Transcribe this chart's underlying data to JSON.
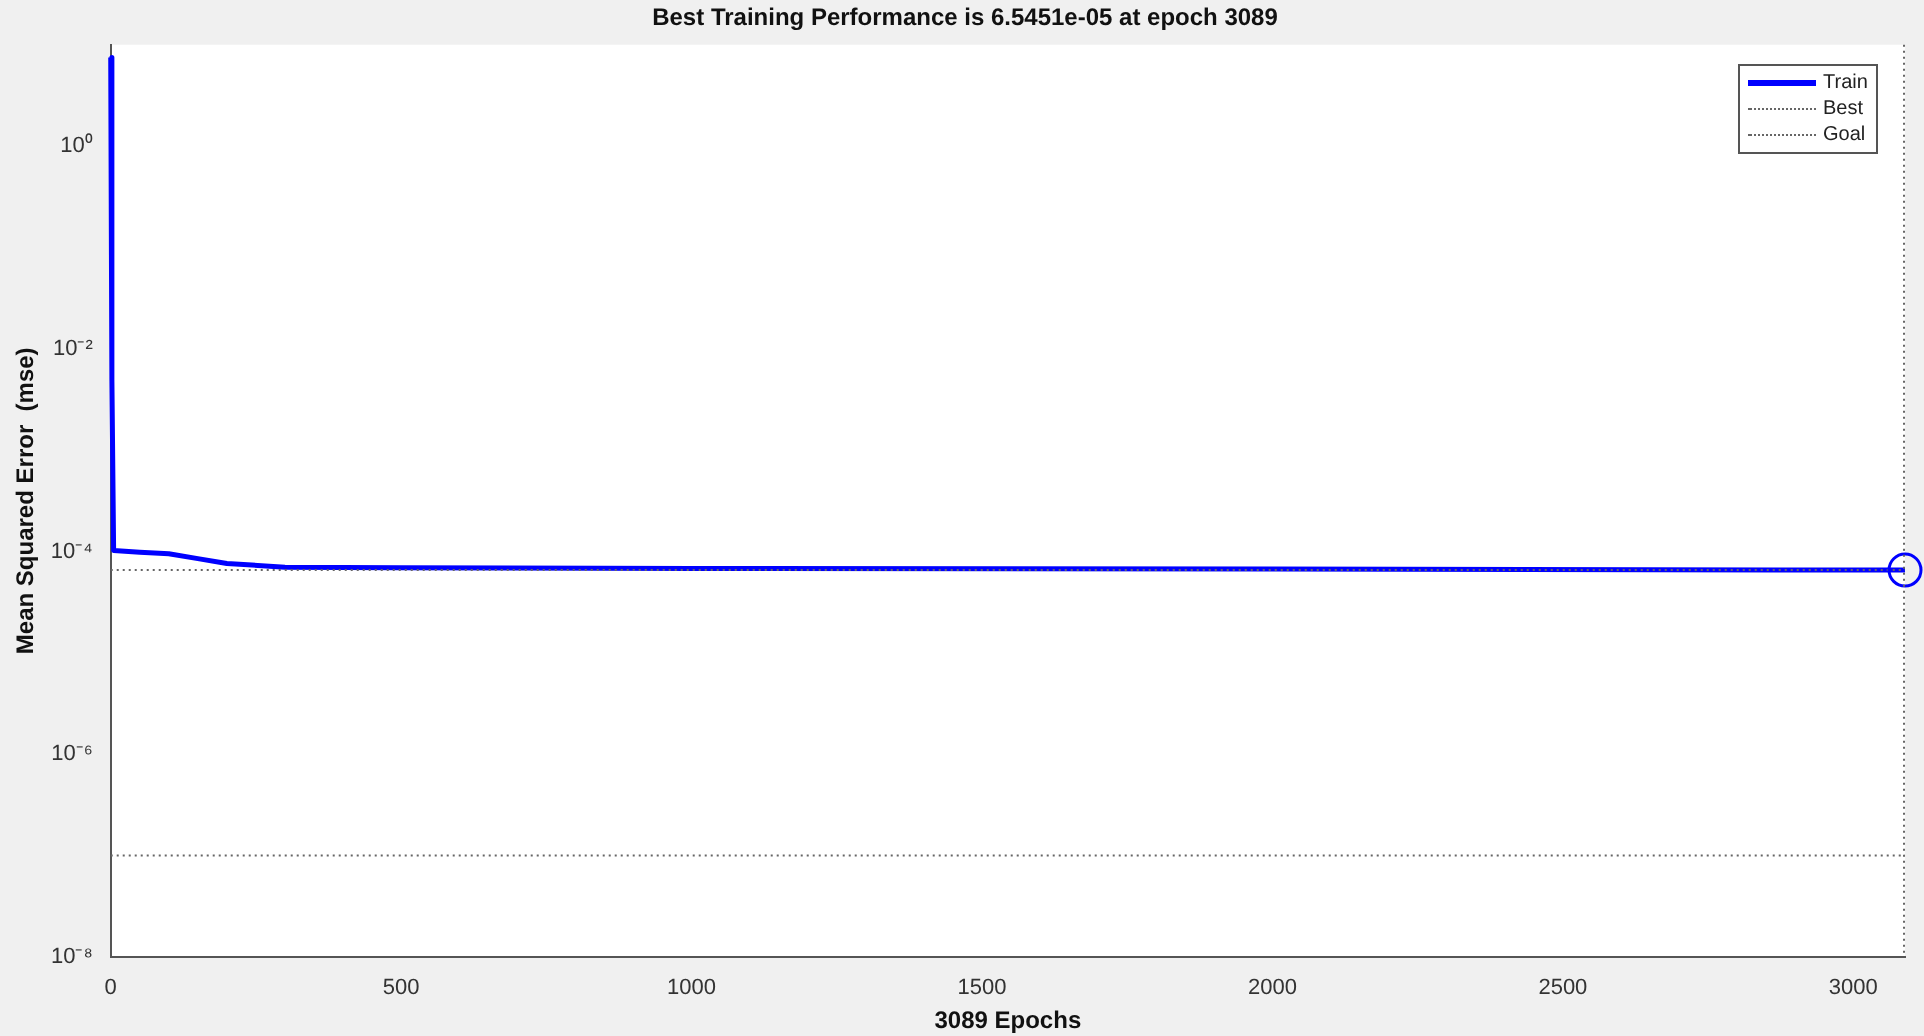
{
  "chart_data": {
    "type": "line",
    "title": "Best Training Performance is 6.5451e-05 at epoch 3089",
    "xlabel": "3089 Epochs",
    "ylabel": "Mean Squared Error  (mse)",
    "log": "y",
    "grid": false,
    "legend": "top right",
    "xlim": [
      0,
      3089
    ],
    "xticks": [
      0,
      500,
      1000,
      1500,
      2000,
      2500,
      3000
    ],
    "ylim": [
      1e-08,
      10
    ],
    "yticks": [
      {
        "value": 1e-08,
        "label": "10⁻⁸"
      },
      {
        "value": 1e-06,
        "label": "10⁻⁶"
      },
      {
        "value": 0.0001,
        "label": "10⁻⁴"
      },
      {
        "value": 0.01,
        "label": "10⁻²"
      },
      {
        "value": 1,
        "label": "10⁰"
      }
    ],
    "ref_lines": [
      {
        "axis": "x",
        "value": 3089,
        "color": "#666666",
        "line_style": "dotted"
      }
    ],
    "series": [
      {
        "name": "Train",
        "color": "#0000ff",
        "line_style": "solid",
        "marker": "none",
        "x": [
          0,
          2,
          5,
          50,
          100,
          150,
          200,
          300,
          500,
          1000,
          2000,
          3089
        ],
        "values": [
          7.5,
          0.005,
          0.000102,
          9.8e-05,
          9.5e-05,
          8.5e-05,
          7.6e-05,
          7e-05,
          6.9e-05,
          6.8e-05,
          6.7e-05,
          6.5451e-05
        ]
      },
      {
        "name": "Best",
        "type": "line",
        "color": "#666666",
        "line_style": "dotted",
        "marker": "none",
        "x": [
          0,
          3089
        ],
        "values": [
          6.5451e-05,
          6.5451e-05
        ]
      },
      {
        "name": "Goal",
        "type": "line",
        "color": "#666666",
        "line_style": "dotted",
        "marker": "none",
        "x": [
          0,
          3089
        ],
        "values": [
          1e-07,
          1e-07
        ]
      },
      {
        "type": "scatter",
        "color": "#0000ff",
        "marker": "circle",
        "x": [
          3089
        ],
        "values": [
          6.5451e-05
        ]
      }
    ]
  }
}
